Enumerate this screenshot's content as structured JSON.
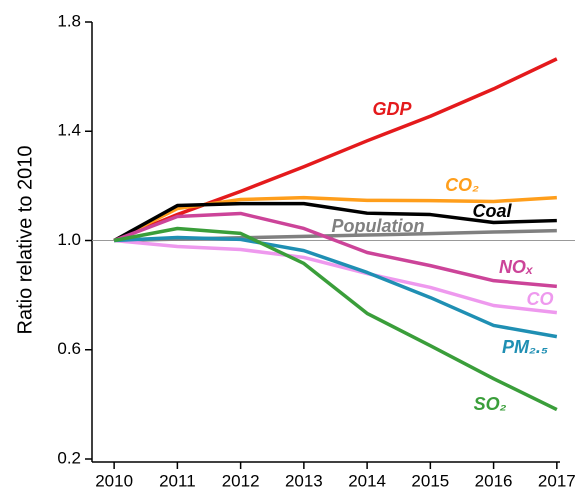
{
  "chart_data": {
    "type": "line",
    "ylabel": "Ratio relative to 2010",
    "x": [
      2010,
      2011,
      2012,
      2013,
      2014,
      2015,
      2016,
      2017
    ],
    "xlim": [
      2009.65,
      2017.05
    ],
    "xticks": [
      2010,
      2011,
      2012,
      2013,
      2014,
      2015,
      2016,
      2017
    ],
    "ylim": [
      0.2,
      1.8
    ],
    "yticks": [
      0.2,
      0.6,
      {
        "value": 1,
        "label": "1.0"
      },
      1.4,
      1.8
    ],
    "reference_line": 1,
    "series": [
      {
        "name": "GDP",
        "color": "#e41a1c",
        "values": [
          1.0,
          1.095,
          1.18,
          1.27,
          1.365,
          1.455,
          1.555,
          1.665
        ]
      },
      {
        "name": "CO₂",
        "color": "#ff9e1b",
        "values": [
          1.0,
          1.117,
          1.15,
          1.157,
          1.147,
          1.146,
          1.143,
          1.157
        ]
      },
      {
        "name": "Coal",
        "color": "#000000",
        "values": [
          1.0,
          1.128,
          1.135,
          1.135,
          1.1,
          1.095,
          1.066,
          1.073
        ]
      },
      {
        "name": "Population",
        "color": "#808080",
        "values": [
          1.0,
          1.005,
          1.01,
          1.015,
          1.02,
          1.025,
          1.031,
          1.036
        ]
      },
      {
        "name": "NOₓ",
        "color": "#cc4499",
        "values": [
          1.0,
          1.088,
          1.099,
          1.044,
          0.956,
          0.908,
          0.853,
          0.832
        ]
      },
      {
        "name": "CO",
        "color": "#ee99ee",
        "values": [
          1.0,
          0.978,
          0.967,
          0.938,
          0.879,
          0.828,
          0.762,
          0.736
        ]
      },
      {
        "name": "PM₂.₅",
        "color": "#1f8fb3",
        "values": [
          1.0,
          1.011,
          1.004,
          0.963,
          0.883,
          0.791,
          0.689,
          0.648
        ]
      },
      {
        "name": "SO₂",
        "color": "#3a9e3a",
        "values": [
          1.0,
          1.044,
          1.026,
          0.916,
          0.733,
          0.615,
          0.494,
          0.381
        ]
      }
    ]
  }
}
